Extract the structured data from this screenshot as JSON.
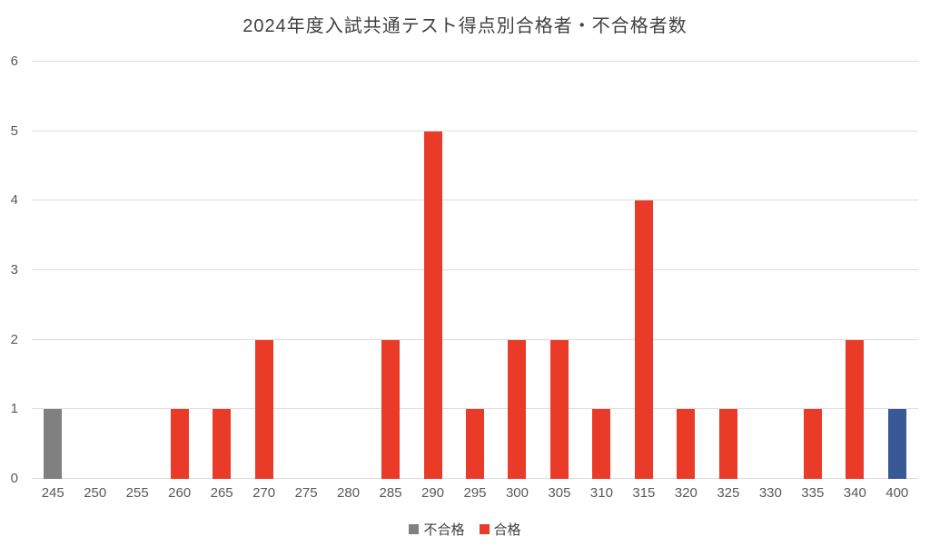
{
  "chart_data": {
    "type": "bar",
    "title": "2024年度入試共通テスト得点別合格者・不合格者数",
    "categories": [
      "245",
      "250",
      "255",
      "260",
      "265",
      "270",
      "275",
      "280",
      "285",
      "290",
      "295",
      "300",
      "305",
      "310",
      "315",
      "320",
      "325",
      "330",
      "335",
      "340",
      "400"
    ],
    "values": [
      1,
      0,
      0,
      1,
      1,
      2,
      0,
      0,
      2,
      5,
      1,
      2,
      2,
      1,
      4,
      1,
      1,
      0,
      1,
      2,
      1
    ],
    "bar_colors": [
      "#808080",
      "#EA3B28",
      "#EA3B28",
      "#EA3B28",
      "#EA3B28",
      "#EA3B28",
      "#EA3B28",
      "#EA3B28",
      "#EA3B28",
      "#EA3B28",
      "#EA3B28",
      "#EA3B28",
      "#EA3B28",
      "#EA3B28",
      "#EA3B28",
      "#EA3B28",
      "#EA3B28",
      "#EA3B28",
      "#EA3B28",
      "#EA3B28",
      "#3A5896"
    ],
    "xlabel": "",
    "ylabel": "",
    "ylim": [
      0,
      6
    ],
    "yticks": [
      0,
      1,
      2,
      3,
      4,
      5,
      6
    ],
    "grid": true,
    "legend": {
      "position": "bottom",
      "entries": [
        {
          "label": "不合格",
          "color": "#808080"
        },
        {
          "label": "合格",
          "color": "#EA3B28"
        }
      ]
    },
    "colors": {
      "fail_bar": "#808080",
      "pass_bar": "#EA3B28",
      "bar_400": "#3A5896",
      "gridline": "#DCDCDC",
      "title_text": "#404040",
      "axis_text": "#595959"
    }
  }
}
